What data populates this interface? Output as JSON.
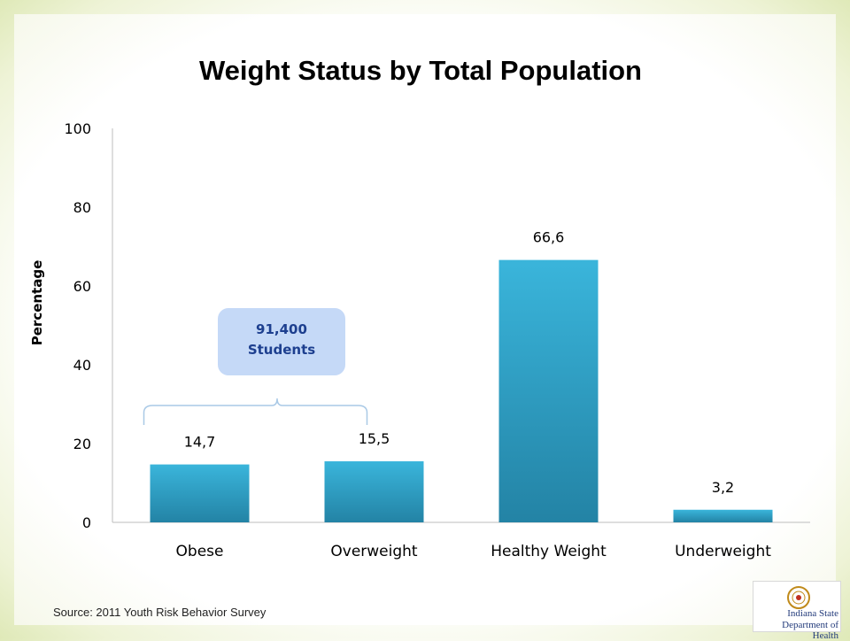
{
  "slide": {
    "title": "Weight Status by Total Population",
    "source": "Source: 2011 Youth Risk Behavior Survey",
    "logo": {
      "line1": "Indiana State",
      "line2": "Department of Health"
    }
  },
  "chart_data": {
    "type": "bar",
    "title": "Weight Status by Total Population",
    "xlabel": "",
    "ylabel": "Percentage",
    "categories": [
      "Obese",
      "Overweight",
      "Healthy Weight",
      "Underweight"
    ],
    "values": [
      14.7,
      15.5,
      66.6,
      3.2
    ],
    "data_labels": [
      "14,7",
      "15,5",
      "66,6",
      "3,2"
    ],
    "ylim": [
      0,
      100
    ],
    "yticks": [
      0,
      20,
      40,
      60,
      80,
      100
    ],
    "grid": false,
    "bar_color": "#2f9fc4",
    "annotation": {
      "text_line1": "91,400",
      "text_line2": "Students",
      "spans": [
        "Obese",
        "Overweight"
      ],
      "color": "#c5d9f7"
    }
  }
}
